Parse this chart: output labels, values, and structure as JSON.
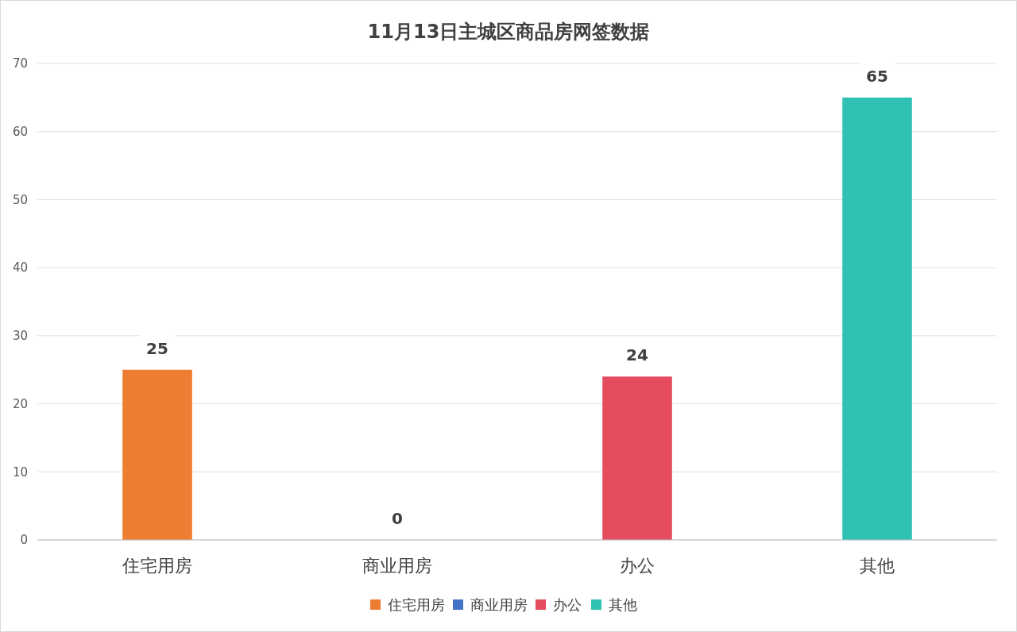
{
  "chart_data": {
    "type": "bar",
    "title": "11月13日主城区商品房网签数据",
    "categories": [
      "住宅用房",
      "商业用房",
      "办公",
      "其他"
    ],
    "stacked": true,
    "series": [
      {
        "name": "住宅用房",
        "color": "#ed7d31",
        "values": [
          25,
          null,
          null,
          null
        ]
      },
      {
        "name": "商业用房",
        "color": "#4472c4",
        "values": [
          null,
          0,
          null,
          null
        ]
      },
      {
        "name": "办公",
        "color": "#e54c5e",
        "values": [
          null,
          null,
          24,
          null
        ]
      },
      {
        "name": "其他",
        "color": "#2ec1b4",
        "values": [
          null,
          null,
          null,
          65
        ]
      }
    ],
    "ylim": [
      0,
      70
    ],
    "yticks": [
      0,
      10,
      20,
      30,
      40,
      50,
      60,
      70
    ],
    "grid": "y",
    "legend": "bottom",
    "data_labels": true
  }
}
